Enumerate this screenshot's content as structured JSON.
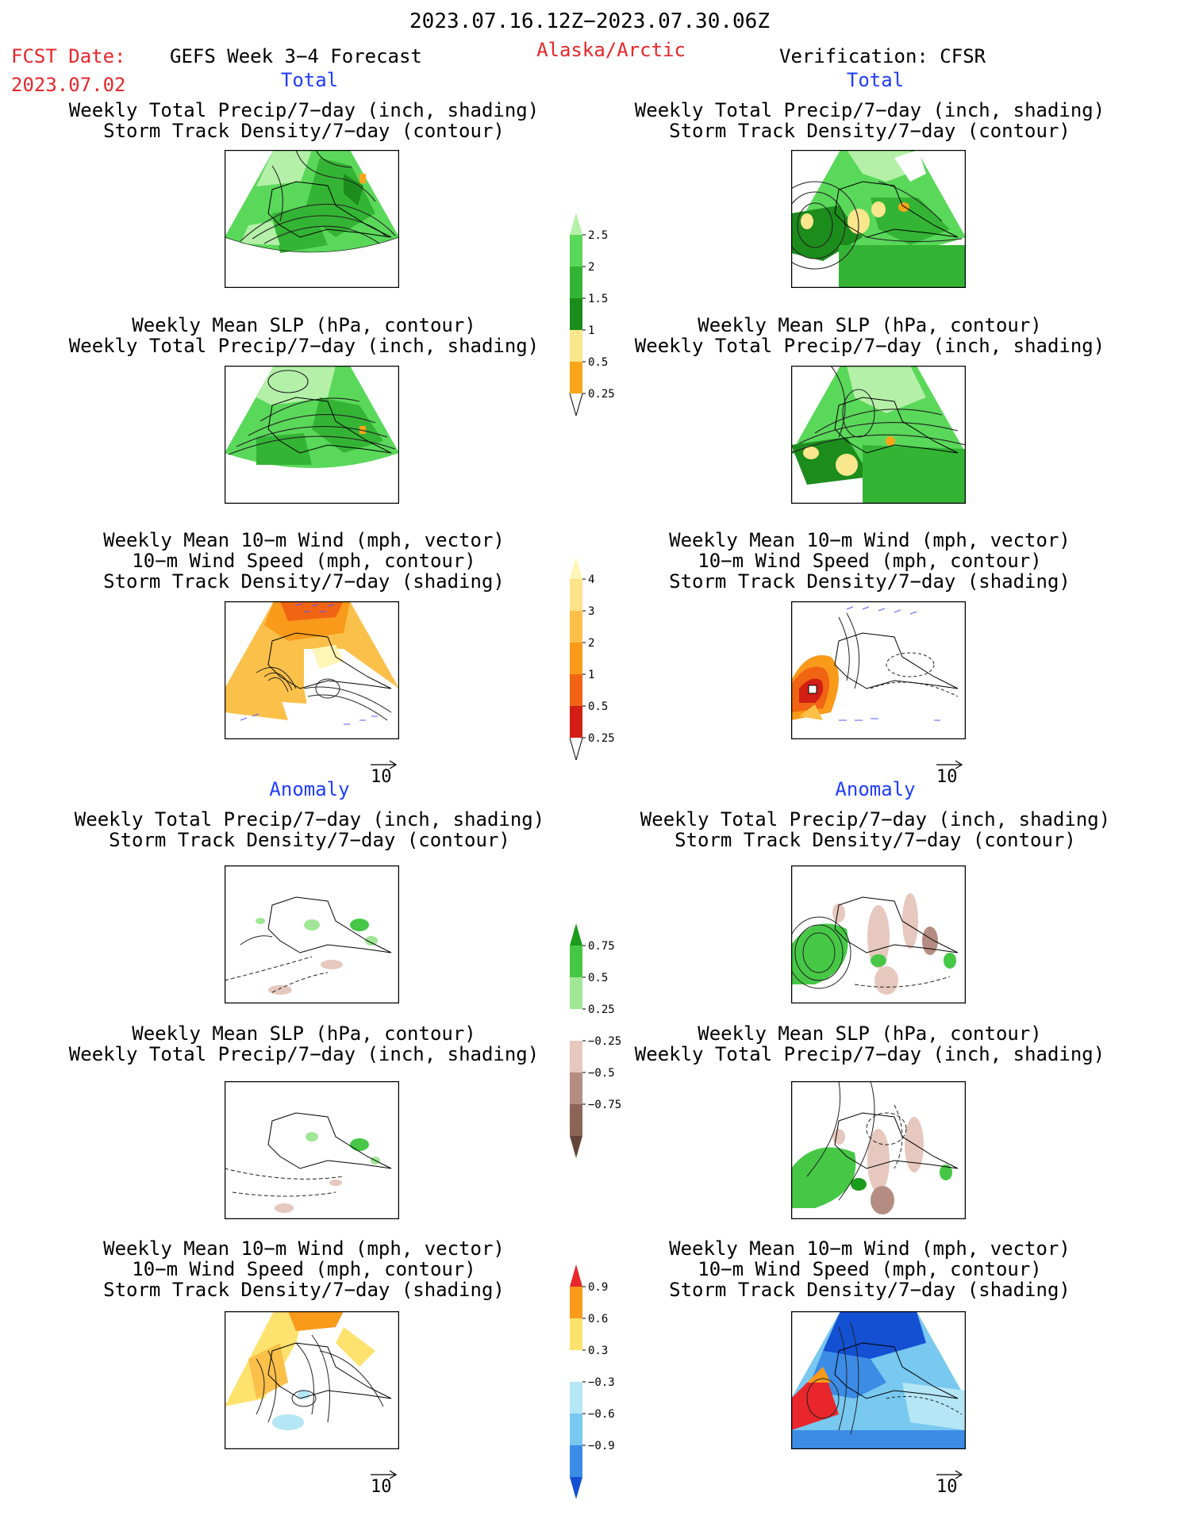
{
  "header": {
    "period": "2023.07.16.12Z−2023.07.30.06Z",
    "fcst_label": "FCST Date:",
    "fcst_date": "2023.07.02",
    "product": "GEFS Week 3−4 Forecast",
    "region": "Alaska/Arctic",
    "verification": "Verification: CFSR"
  },
  "sections": {
    "total_left": "Total",
    "total_right": "Total",
    "anomaly_left": "Anomaly",
    "anomaly_right": "Anomaly"
  },
  "panel_titles": {
    "precip_storm": [
      "Weekly Total Precip/7−day (inch, shading)",
      "Storm Track Density/7−day (contour)"
    ],
    "slp_precip": [
      "Weekly Mean SLP (hPa, contour)",
      "Weekly Total Precip/7−day (inch, shading)"
    ],
    "wind_storm": [
      "Weekly Mean 10−m Wind (mph, vector)",
      "10−m Wind Speed (mph, contour)",
      "Storm Track Density/7−day (shading)"
    ]
  },
  "vector_reference": "10",
  "colorbars": {
    "precip_total": {
      "labels": [
        "0.25",
        "0.5",
        "1",
        "1.5",
        "2",
        "2.5"
      ],
      "colors": [
        "#b4f0a8",
        "#5ad85a",
        "#34b434",
        "#1c8c1c",
        "#fae68c",
        "#f9a51a",
        "#e8262b"
      ]
    },
    "storm_total": {
      "labels": [
        "0.25",
        "0.5",
        "1",
        "2",
        "3",
        "4"
      ],
      "colors": [
        "#fff5b4",
        "#fde28c",
        "#fbc04a",
        "#f99a1a",
        "#f06414",
        "#d21e14",
        "#a0140e"
      ]
    },
    "precip_anom": {
      "labels": [
        "0.75",
        "0.5",
        "0.25",
        "−0.25",
        "−0.5",
        "−0.75"
      ],
      "colors": [
        "#1c9c1c",
        "#46c846",
        "#a0e696",
        "#ffffff",
        "#e6c8be",
        "#b48c82",
        "#8c6458",
        "#64443a"
      ]
    },
    "storm_anom": {
      "labels": [
        "0.9",
        "0.6",
        "0.3",
        "−0.3",
        "−0.6",
        "−0.9"
      ],
      "colors": [
        "#e8262b",
        "#f99a1a",
        "#fde26e",
        "#ffffff",
        "#b4e6f5",
        "#78c8f0",
        "#3c8ce6",
        "#1450d2"
      ]
    }
  }
}
